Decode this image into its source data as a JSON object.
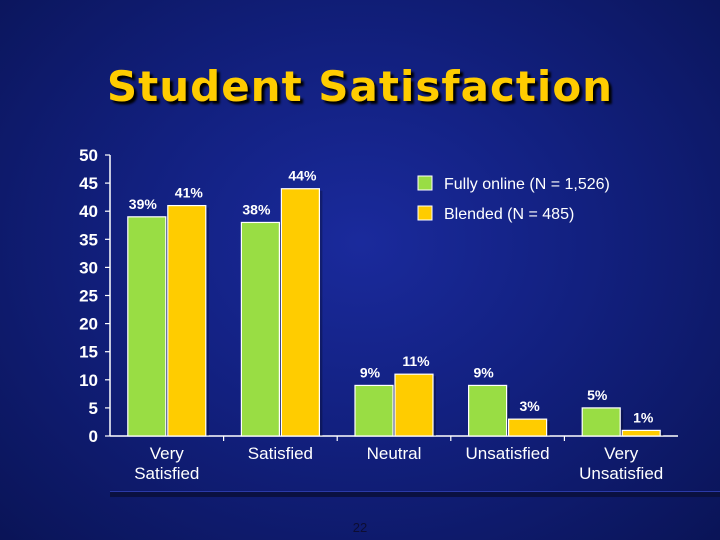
{
  "slide": {
    "title": "Student Satisfaction",
    "page_number": "22"
  },
  "colors": {
    "fully_online": "#99dd44",
    "blended": "#ffcc00",
    "title": "#ffcc00",
    "text": "#ffffff",
    "background": "#12207f"
  },
  "chart_data": {
    "type": "bar",
    "categories": [
      "Very Satisfied",
      "Satisfied",
      "Neutral",
      "Unsatisfied",
      "Very Unsatisfied"
    ],
    "series": [
      {
        "name": "Fully online (N = 1,526)",
        "values": [
          39,
          38,
          9,
          9,
          5
        ],
        "labels": [
          "39%",
          "38%",
          "9%",
          "9%",
          "5%"
        ]
      },
      {
        "name": "Blended (N = 485)",
        "values": [
          41,
          44,
          11,
          3,
          1
        ],
        "labels": [
          "41%",
          "44%",
          "11%",
          "3%",
          "1%"
        ]
      }
    ],
    "yticks": [
      0,
      5,
      10,
      15,
      20,
      25,
      30,
      35,
      40,
      45,
      50
    ],
    "ylim": [
      0,
      50
    ],
    "grid": false,
    "legend_position": "top-right"
  }
}
